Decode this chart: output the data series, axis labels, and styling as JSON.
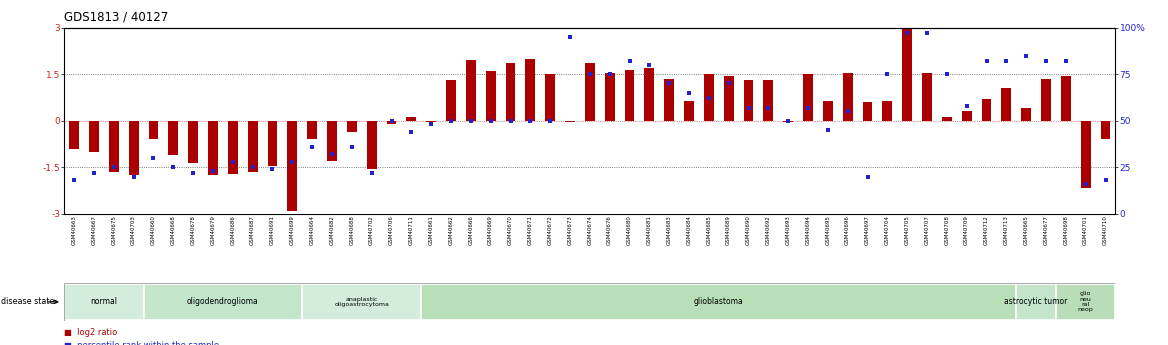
{
  "title": "GDS1813 / 40127",
  "samples": [
    "GSM40663",
    "GSM40667",
    "GSM40675",
    "GSM40703",
    "GSM40660",
    "GSM40668",
    "GSM40678",
    "GSM40679",
    "GSM40686",
    "GSM40687",
    "GSM40691",
    "GSM40699",
    "GSM40664",
    "GSM40682",
    "GSM40688",
    "GSM40702",
    "GSM40706",
    "GSM40711",
    "GSM40661",
    "GSM40662",
    "GSM40666",
    "GSM40669",
    "GSM40670",
    "GSM40671",
    "GSM40672",
    "GSM40673",
    "GSM40674",
    "GSM40676",
    "GSM40680",
    "GSM40681",
    "GSM40683",
    "GSM40684",
    "GSM40685",
    "GSM40689",
    "GSM40690",
    "GSM40692",
    "GSM40693",
    "GSM40694",
    "GSM40695",
    "GSM40696",
    "GSM40697",
    "GSM40704",
    "GSM40705",
    "GSM40707",
    "GSM40708",
    "GSM40709",
    "GSM40712",
    "GSM40713",
    "GSM40665",
    "GSM40677",
    "GSM40698",
    "GSM40701",
    "GSM40710"
  ],
  "log2_ratio": [
    -0.9,
    -1.0,
    -1.65,
    -1.75,
    -0.6,
    -1.1,
    -1.35,
    -1.75,
    -1.7,
    -1.65,
    -1.45,
    -2.9,
    -0.6,
    -1.3,
    -0.35,
    -1.55,
    -0.12,
    0.12,
    -0.05,
    1.3,
    1.95,
    1.6,
    1.85,
    2.0,
    1.5,
    -0.05,
    1.85,
    1.55,
    1.65,
    1.7,
    1.35,
    0.65,
    1.5,
    1.45,
    1.3,
    1.3,
    -0.05,
    1.5,
    0.65,
    1.55,
    0.6,
    0.65,
    3.0,
    1.55,
    0.12,
    0.3,
    0.7,
    1.05,
    0.4,
    1.35,
    1.45,
    -2.15,
    -0.6
  ],
  "percentile": [
    18,
    22,
    25,
    20,
    30,
    25,
    22,
    23,
    28,
    25,
    24,
    28,
    36,
    32,
    36,
    22,
    50,
    44,
    48,
    50,
    50,
    50,
    50,
    50,
    50,
    95,
    75,
    75,
    82,
    80,
    70,
    65,
    62,
    70,
    57,
    57,
    50,
    57,
    45,
    55,
    20,
    75,
    97,
    97,
    75,
    58,
    82,
    82,
    85,
    82,
    82,
    16,
    18
  ],
  "disease_groups": [
    {
      "label": "normal",
      "start": 0,
      "end": 4,
      "color": "#d4edda"
    },
    {
      "label": "oligodendroglioma",
      "start": 4,
      "end": 12,
      "color": "#c3e6cb"
    },
    {
      "label": "anaplastic\noligoastrocytoma",
      "start": 12,
      "end": 18,
      "color": "#d4edda"
    },
    {
      "label": "glioblastoma",
      "start": 18,
      "end": 48,
      "color": "#b8e0b8"
    },
    {
      "label": "astrocytic tumor",
      "start": 48,
      "end": 50,
      "color": "#c3e6cb"
    },
    {
      "label": "glio\nneu\nral\nneop",
      "start": 50,
      "end": 53,
      "color": "#b8ddb8"
    }
  ],
  "ylim_left": [
    -3,
    3
  ],
  "ylim_right": [
    0,
    100
  ],
  "yticks_left": [
    -3,
    -1.5,
    0,
    1.5,
    3
  ],
  "yticks_right": [
    0,
    25,
    50,
    75,
    100
  ],
  "bar_color": "#aa0000",
  "dot_color": "#2222cc",
  "background_color": "#ffffff"
}
